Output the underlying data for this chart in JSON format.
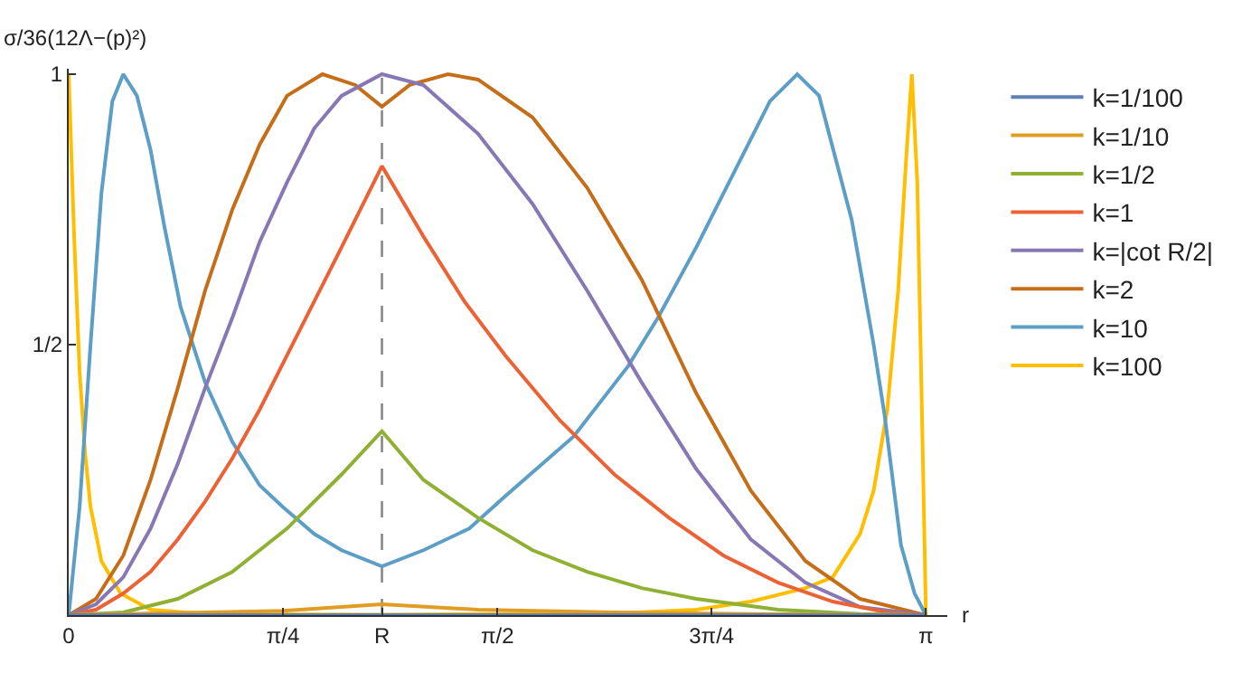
{
  "chart_data": {
    "type": "line",
    "xlabel": "r",
    "ylabel": "σ/36(12Λ−(p)²)",
    "xlim": [
      0,
      3.22
    ],
    "ylim": [
      0,
      1.01
    ],
    "xticks": [
      0,
      {
        "value": 0.785,
        "label": "π/4"
      },
      {
        "value": 1.148,
        "label": "R"
      },
      {
        "value": 1.571,
        "label": "π/2"
      },
      {
        "value": 2.356,
        "label": "3π/4"
      },
      {
        "value": 3.1416,
        "label": "π"
      }
    ],
    "yticks": [
      {
        "value": 0,
        "label": null
      },
      {
        "value": 0.5,
        "label": "1/2"
      },
      1
    ],
    "grid": false,
    "legend": "right",
    "marker": "none",
    "line_style": "solid",
    "ref_lines": [
      {
        "axis": "x",
        "value": 1.148,
        "label": null,
        "color": "#888888",
        "line_style": "dashed"
      }
    ],
    "series": [
      {
        "name": "k=1/100",
        "color": "#5e81b5",
        "x": [
          0,
          3.1416
        ],
        "values": [
          0,
          0
        ]
      },
      {
        "name": "k=1/10",
        "color": "#e19c24",
        "x": [
          0,
          0.5,
          0.785,
          1.148,
          1.5,
          2.0,
          2.5,
          3.1416
        ],
        "values": [
          0,
          0.005,
          0.008,
          0.02,
          0.01,
          0.005,
          0.002,
          0
        ]
      },
      {
        "name": "k=1/2",
        "color": "#8fb032",
        "x": [
          0,
          0.2,
          0.4,
          0.6,
          0.8,
          1.0,
          1.148,
          1.3,
          1.5,
          1.7,
          1.9,
          2.1,
          2.3,
          2.6,
          2.9,
          3.1416
        ],
        "values": [
          0,
          0.005,
          0.03,
          0.08,
          0.16,
          0.26,
          0.34,
          0.25,
          0.18,
          0.12,
          0.08,
          0.05,
          0.03,
          0.01,
          0.002,
          0
        ]
      },
      {
        "name": "k=1",
        "color": "#eb6235",
        "x": [
          0,
          0.1,
          0.2,
          0.3,
          0.4,
          0.5,
          0.6,
          0.7,
          0.8,
          0.9,
          1.0,
          1.148,
          1.3,
          1.45,
          1.6,
          1.8,
          2.0,
          2.2,
          2.4,
          2.6,
          2.8,
          3.0,
          3.1416
        ],
        "values": [
          0,
          0.01,
          0.04,
          0.08,
          0.14,
          0.21,
          0.29,
          0.38,
          0.48,
          0.58,
          0.68,
          0.83,
          0.7,
          0.58,
          0.48,
          0.36,
          0.26,
          0.18,
          0.11,
          0.06,
          0.025,
          0.005,
          0
        ]
      },
      {
        "name": "k=|cot R/2|",
        "color": "#8778b3",
        "x": [
          0,
          0.1,
          0.2,
          0.3,
          0.4,
          0.5,
          0.6,
          0.7,
          0.8,
          0.9,
          1.0,
          1.148,
          1.3,
          1.5,
          1.7,
          1.9,
          2.1,
          2.3,
          2.5,
          2.7,
          2.9,
          3.1416
        ],
        "values": [
          0,
          0.02,
          0.07,
          0.16,
          0.28,
          0.42,
          0.55,
          0.69,
          0.8,
          0.9,
          0.96,
          1,
          0.98,
          0.89,
          0.76,
          0.6,
          0.43,
          0.27,
          0.14,
          0.06,
          0.015,
          0
        ]
      },
      {
        "name": "k=2",
        "color": "#c56e1a",
        "x": [
          0,
          0.1,
          0.2,
          0.3,
          0.4,
          0.5,
          0.6,
          0.7,
          0.8,
          0.93,
          1.05,
          1.148,
          1.25,
          1.39,
          1.5,
          1.7,
          1.9,
          2.1,
          2.3,
          2.5,
          2.7,
          2.9,
          3.1416
        ],
        "values": [
          0,
          0.03,
          0.11,
          0.25,
          0.42,
          0.6,
          0.75,
          0.87,
          0.96,
          1,
          0.98,
          0.94,
          0.98,
          1,
          0.99,
          0.92,
          0.79,
          0.62,
          0.41,
          0.23,
          0.1,
          0.03,
          0
        ]
      },
      {
        "name": "k=10",
        "color": "#5d9ec7",
        "x": [
          0,
          0.04,
          0.08,
          0.12,
          0.16,
          0.2,
          0.25,
          0.3,
          0.35,
          0.41,
          0.5,
          0.6,
          0.7,
          0.785,
          0.9,
          1.0,
          1.148,
          1.3,
          1.468,
          1.6,
          1.85,
          2.05,
          2.16,
          2.3,
          2.46,
          2.57,
          2.67,
          2.75,
          2.87,
          2.95,
          2.99,
          3.05,
          3.1,
          3.1416
        ],
        "values": [
          0,
          0.2,
          0.5,
          0.78,
          0.95,
          1,
          0.96,
          0.86,
          0.72,
          0.57,
          0.43,
          0.32,
          0.24,
          0.2,
          0.15,
          0.12,
          0.09,
          0.12,
          0.16,
          0.22,
          0.33,
          0.46,
          0.55,
          0.68,
          0.84,
          0.95,
          1,
          0.96,
          0.73,
          0.5,
          0.37,
          0.13,
          0.04,
          0
        ]
      },
      {
        "name": "k=100",
        "color": "#ffbf00",
        "x": [
          0,
          0.02,
          0.04,
          0.06,
          0.08,
          0.12,
          0.19,
          0.3,
          0.5,
          1.148,
          2.0,
          2.3,
          2.5,
          2.7,
          2.8,
          2.9,
          2.95,
          3.0,
          3.04,
          3.07,
          3.09,
          3.11,
          3.13,
          3.1416
        ],
        "values": [
          1,
          0.7,
          0.45,
          0.3,
          0.2,
          0.1,
          0.04,
          0.01,
          0.002,
          0.001,
          0.003,
          0.01,
          0.025,
          0.05,
          0.07,
          0.15,
          0.23,
          0.38,
          0.6,
          0.85,
          1,
          0.8,
          0.3,
          0
        ]
      }
    ]
  }
}
